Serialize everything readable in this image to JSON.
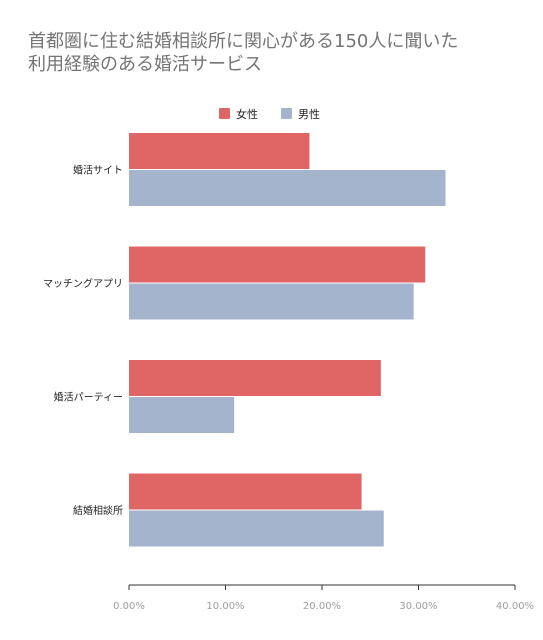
{
  "chart_data": {
    "type": "bar",
    "orientation": "horizontal",
    "title_lines": [
      "首都圏に住む結婚相談所に関心がある150人に聞いた",
      "利用経験のある婚活サービス"
    ],
    "categories": [
      "婚活サイト",
      "マッチングアプリ",
      "婚活パーティー",
      "結婚相談所"
    ],
    "series": [
      {
        "name": "女性",
        "color": "#e06666",
        "values": [
          18.7,
          30.7,
          26.1,
          24.1
        ]
      },
      {
        "name": "男性",
        "color": "#a4b4cd",
        "values": [
          32.8,
          29.5,
          10.9,
          26.4
        ]
      }
    ],
    "xlim": [
      0,
      40
    ],
    "x_ticks": [
      "0.00%",
      "10.00%",
      "20.00%",
      "30.00%",
      "40.00%"
    ],
    "legend_position": "top",
    "grid": false
  }
}
